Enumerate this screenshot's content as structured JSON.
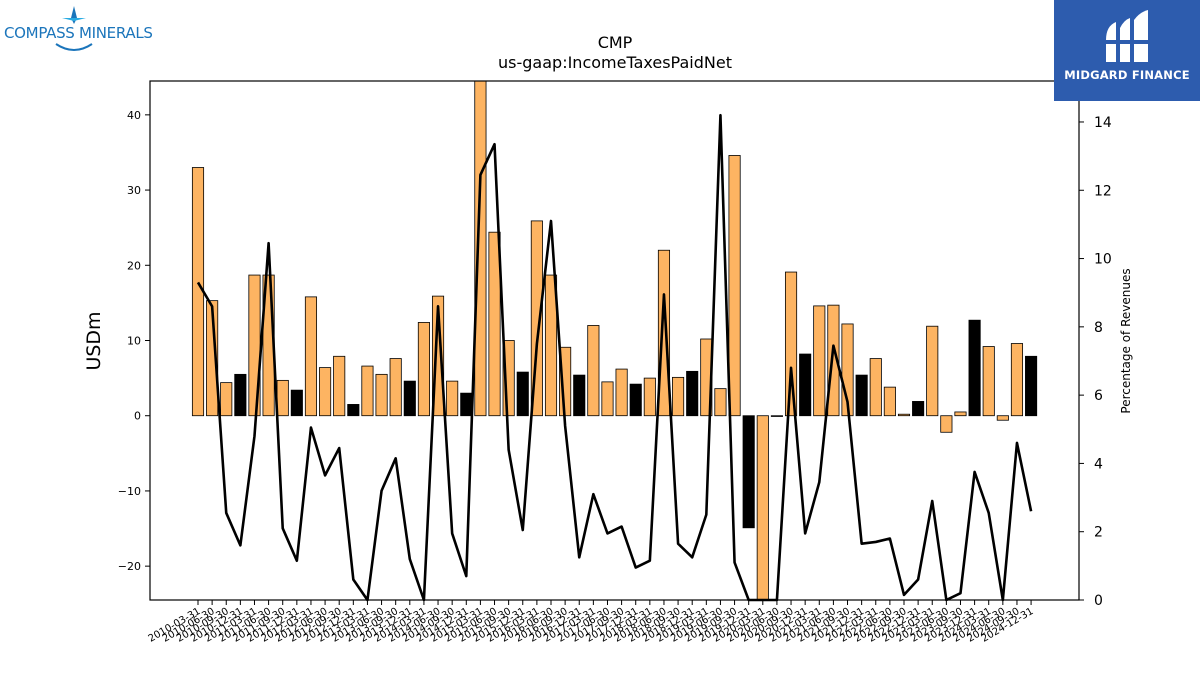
{
  "logos": {
    "left": {
      "text": "COMPASS MINERALS",
      "color": "#1b75bb"
    },
    "right": {
      "text": "MIDGARD FINANCE",
      "background": "#2d5cae"
    }
  },
  "chart_data": {
    "type": "bar",
    "title": "CMP",
    "subtitle": "us-gaap:IncomeTaxesPaidNet",
    "ylabel": "USDm",
    "y2label": "Percentage of Revenues",
    "ylim": [
      -24.5,
      44.5
    ],
    "y2lim": [
      0,
      15.2
    ],
    "yticks": [
      -20,
      -10,
      0,
      10,
      20,
      30,
      40
    ],
    "y2ticks": [
      0,
      2,
      4,
      6,
      8,
      10,
      12,
      14
    ],
    "ytick_labels": [
      "−20",
      "−10",
      "0",
      "10",
      "20",
      "30",
      "40"
    ],
    "y2tick_labels": [
      "0",
      "2",
      "4",
      "6",
      "8",
      "10",
      "12",
      "14"
    ],
    "bar_color_default": "#fdb462",
    "bar_color_highlight": "#000000",
    "line_color": "#000000",
    "categories": [
      "2010-03-31",
      "2010-06-30",
      "2010-09-30",
      "2010-12-31",
      "2011-03-31",
      "2011-06-30",
      "2011-09-30",
      "2011-12-31",
      "2012-03-31",
      "2012-06-30",
      "2012-09-30",
      "2012-12-31",
      "2013-03-31",
      "2013-06-30",
      "2013-09-30",
      "2013-12-31",
      "2014-03-31",
      "2014-06-30",
      "2014-09-30",
      "2014-12-31",
      "2015-03-31",
      "2015-06-30",
      "2015-09-30",
      "2015-12-31",
      "2016-03-31",
      "2016-06-30",
      "2016-09-30",
      "2016-12-31",
      "2017-03-31",
      "2017-06-30",
      "2017-09-30",
      "2017-12-31",
      "2018-03-31",
      "2018-06-30",
      "2018-09-30",
      "2018-12-31",
      "2019-03-31",
      "2019-06-30",
      "2019-09-30",
      "2019-12-31",
      "2020-03-31",
      "2020-06-30",
      "2020-09-30",
      "2020-12-31",
      "2021-03-31",
      "2021-06-30",
      "2021-09-30",
      "2021-12-31",
      "2022-03-31",
      "2022-06-30",
      "2022-09-30",
      "2022-12-31",
      "2023-03-31",
      "2023-06-30",
      "2023-09-30",
      "2023-12-31",
      "2024-03-31",
      "2024-06-30",
      "2024-09-30",
      "2024-12-31"
    ],
    "tick_labels": [
      "2010-03-31",
      "2010-06-30",
      "2010-09-30",
      "2010-12-31",
      "2011-03-31",
      "2011-06-30",
      "2011-09-30",
      "2011-12-31",
      "2012-03-31",
      "2012-06-30",
      "2012-09-30",
      "2012-12-31",
      "2013-03-31",
      "2013-06-30",
      "2013-09-30",
      "2013-12-31",
      "2014-03-31",
      "2014-06-30",
      "2014-09-30",
      "2014-12-31",
      "2015-03-31",
      "2015-06-30",
      "2015-09-30",
      "2015-12-31",
      "2016-03-31",
      "2016-06-30",
      "2016-09-30",
      "2016-12-31",
      "2017-03-31",
      "2017-06-30",
      "2017-09-30",
      "2017-12-31",
      "2018-03-31",
      "2018-06-30",
      "2018-09-30",
      "2018-12-31",
      "2019-03-31",
      "2019-06-30",
      "2019-09-30",
      "2019-12-31",
      "2020-03-31",
      "2020-06-30",
      "2020-09-30",
      "2020-12-31",
      "2021-03-31",
      "2021-06-30",
      "2021-09-30",
      "2021-12-31",
      "2022-03-31",
      "2022-06-30",
      "2022-09-30",
      "2022-12-31",
      "2023-03-31",
      "2023-06-30",
      "2023-09-30",
      "2023-12-31",
      "2024-03-31",
      "2024-06-30",
      "2024-09-30",
      "2024-12-31"
    ],
    "bars": [
      33.0,
      15.3,
      4.4,
      5.5,
      18.7,
      18.7,
      4.7,
      3.4,
      15.8,
      6.4,
      7.9,
      1.5,
      6.6,
      5.5,
      7.6,
      4.6,
      12.4,
      15.9,
      4.6,
      3.0,
      44.8,
      24.4,
      10.0,
      5.8,
      25.9,
      18.7,
      9.1,
      5.4,
      12.0,
      4.5,
      6.2,
      4.2,
      5.0,
      22.0,
      5.1,
      5.9,
      10.2,
      3.6,
      34.6,
      -14.9,
      -24.5,
      -0.1,
      19.1,
      8.2,
      14.6,
      14.7,
      12.2,
      5.4,
      7.6,
      3.8,
      0.2,
      1.9,
      11.9,
      -2.2,
      0.5,
      12.7,
      9.2,
      -0.6,
      9.6,
      7.9
    ],
    "highlight": [
      false,
      false,
      false,
      true,
      false,
      false,
      false,
      true,
      false,
      false,
      false,
      true,
      false,
      false,
      false,
      true,
      false,
      false,
      false,
      true,
      false,
      false,
      false,
      true,
      false,
      false,
      false,
      true,
      false,
      false,
      false,
      true,
      false,
      false,
      false,
      true,
      false,
      false,
      false,
      true,
      false,
      false,
      false,
      true,
      false,
      false,
      false,
      true,
      false,
      false,
      false,
      true,
      false,
      false,
      false,
      true,
      false,
      false,
      false,
      true
    ],
    "line": [
      9.3,
      8.6,
      2.55,
      1.6,
      4.8,
      10.45,
      2.1,
      1.15,
      5.05,
      3.65,
      4.45,
      0.6,
      0.0,
      3.2,
      4.15,
      1.2,
      0.0,
      8.6,
      1.95,
      0.7,
      12.45,
      13.35,
      4.4,
      2.05,
      7.5,
      11.1,
      5.1,
      1.25,
      3.1,
      1.95,
      2.15,
      0.95,
      1.15,
      8.95,
      1.65,
      1.25,
      2.5,
      14.2,
      1.1,
      0.0,
      0.0,
      0.0,
      6.8,
      1.95,
      3.45,
      7.45,
      5.8,
      1.65,
      1.7,
      1.8,
      0.15,
      0.6,
      2.9,
      0.0,
      0.2,
      3.75,
      2.55,
      0.0,
      4.6,
      2.6
    ],
    "grid": false,
    "legend": "none"
  }
}
